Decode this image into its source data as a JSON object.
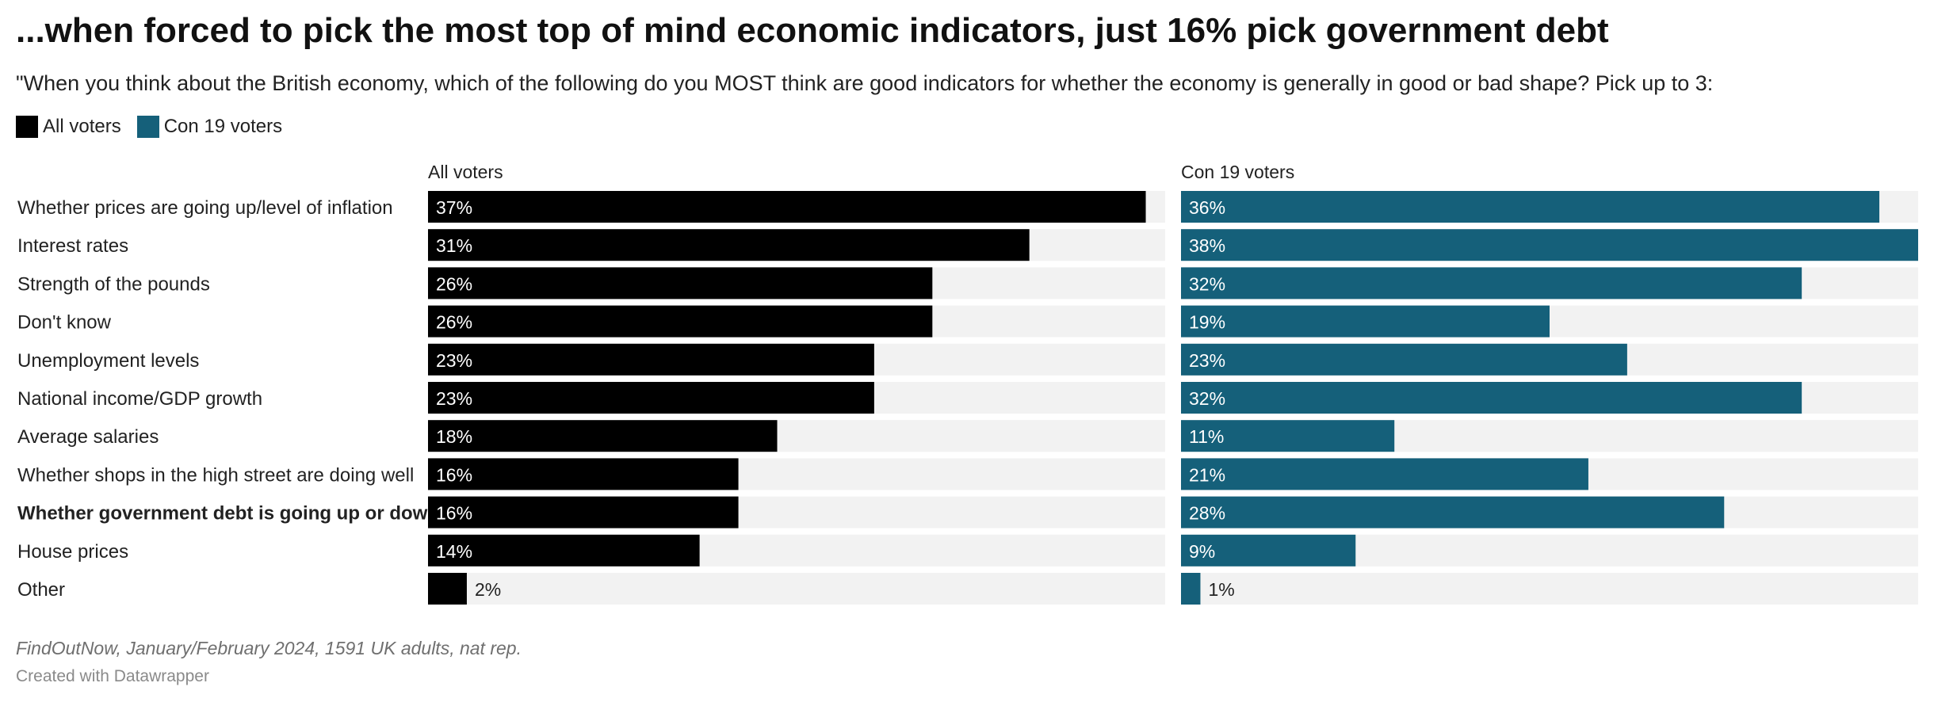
{
  "header": {
    "title": "...when forced to pick the most top of mind economic indicators, just 16% pick government debt",
    "subtitle": "\"When you think about the British economy, which of the following do you MOST think are good indicators for whether the economy is generally in good or bad shape? Pick up to 3:"
  },
  "legend": [
    {
      "label": "All voters",
      "color": "#000000"
    },
    {
      "label": "Con 19 voters",
      "color": "#15607a"
    }
  ],
  "chart_data": {
    "type": "bar",
    "orientation": "horizontal",
    "panels": [
      "All voters",
      "Con 19 voters"
    ],
    "categories": [
      "Whether prices are going up/level of inflation",
      "Interest rates",
      "Strength of the pounds",
      "Don't know",
      "Unemployment levels",
      "National income/GDP growth",
      "Average salaries",
      "Whether shops in the high street are doing well",
      "Whether government debt is going up or down",
      "House prices",
      "Other"
    ],
    "highlighted_category": "Whether government debt is going up or down",
    "series": [
      {
        "name": "All voters",
        "color": "#000000",
        "values": [
          37,
          31,
          26,
          26,
          23,
          23,
          18,
          16,
          16,
          14,
          2
        ],
        "labels": [
          "37%",
          "31%",
          "26%",
          "26%",
          "23%",
          "23%",
          "18%",
          "16%",
          "16%",
          "14%",
          "2%"
        ]
      },
      {
        "name": "Con 19 voters",
        "color": "#15607a",
        "values": [
          36,
          38,
          32,
          19,
          23,
          32,
          11,
          21,
          28,
          9,
          1
        ],
        "labels": [
          "36%",
          "38%",
          "32%",
          "19%",
          "23%",
          "32%",
          "11%",
          "21%",
          "28%",
          "9%",
          "1%"
        ]
      }
    ],
    "xlim": [
      0,
      38
    ],
    "background_track_color": "#f2f2f2"
  },
  "footer": {
    "notes": "FindOutNow, January/February 2024, 1591 UK adults, nat rep.",
    "credit": "Created with Datawrapper"
  }
}
